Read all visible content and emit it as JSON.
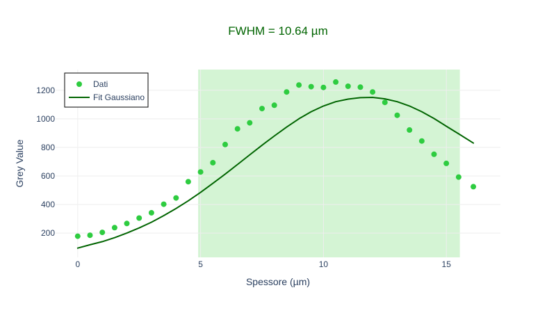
{
  "chart_data": {
    "type": "scatter",
    "title": "FWHM = 10.64 µm",
    "xlabel": "Spessore (µm)",
    "ylabel": "Grey Value",
    "xlim": [
      -0.9,
      17.2
    ],
    "ylim": [
      30,
      1345
    ],
    "x_ticks": [
      0,
      5,
      10,
      15
    ],
    "y_ticks": [
      200,
      400,
      600,
      800,
      1000,
      1200
    ],
    "grid": true,
    "legend_position": "top-left",
    "highlight_band": {
      "x_start": 4.9,
      "x_end": 15.55,
      "color": "#d4f4d4"
    },
    "colors": {
      "title": "#006400",
      "points": "#2ecc40",
      "fit": "#006400",
      "grid": "#eeeeee"
    },
    "series": [
      {
        "name": "Dati",
        "mode": "markers",
        "color": "#2ecc40",
        "x": [
          0,
          0.5,
          1,
          1.5,
          2,
          2.5,
          3,
          3.5,
          4,
          4.5,
          5,
          5.5,
          6,
          6.5,
          7,
          7.5,
          8,
          8.5,
          9,
          9.5,
          10,
          10.5,
          11,
          11.5,
          12,
          12.5,
          13,
          13.5,
          14,
          14.5,
          15,
          15.5,
          16.1
        ],
        "y": [
          178,
          185,
          205,
          238,
          267,
          305,
          342,
          402,
          446,
          560,
          628,
          693,
          820,
          930,
          972,
          1072,
          1095,
          1188,
          1237,
          1225,
          1220,
          1258,
          1228,
          1222,
          1188,
          1115,
          1025,
          922,
          845,
          752,
          688,
          592,
          525
        ]
      },
      {
        "name": "Fit Gaussiano",
        "mode": "line",
        "color": "#006400",
        "x": [
          0,
          0.5,
          1,
          1.5,
          2,
          2.5,
          3,
          3.5,
          4,
          4.5,
          5,
          5.5,
          6,
          6.5,
          7,
          7.5,
          8,
          8.5,
          9,
          9.5,
          10,
          10.5,
          11,
          11.5,
          12,
          12.5,
          13,
          13.5,
          14,
          14.5,
          15,
          15.5,
          16.1
        ],
        "y": [
          95,
          118,
          140,
          168,
          200,
          236,
          276,
          322,
          372,
          426,
          485,
          548,
          613,
          680,
          748,
          815,
          880,
          942,
          1000,
          1050,
          1090,
          1120,
          1138,
          1148,
          1150,
          1140,
          1120,
          1090,
          1050,
          1002,
          948,
          895,
          830
        ]
      }
    ]
  }
}
